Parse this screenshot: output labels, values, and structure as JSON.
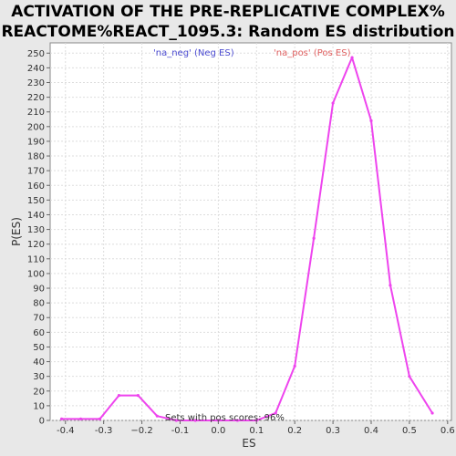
{
  "chart_data": {
    "type": "line",
    "title_line1": "ACTIVATION OF THE PRE-REPLICATIVE COMPLEX%",
    "title_line2": "REACTOME%REACT_1095.3: Random ES distribution",
    "xlabel": "ES",
    "ylabel": "P(ES)",
    "xlim": [
      -0.44,
      0.61
    ],
    "ylim": [
      0,
      257
    ],
    "x_ticks": [
      -0.4,
      -0.3,
      -0.2,
      -0.1,
      0.0,
      0.1,
      0.2,
      0.3,
      0.4,
      0.5,
      0.6
    ],
    "x_tick_labels": [
      "-0.4",
      "-0.3",
      "−0.2",
      "-0.1",
      "0.0",
      "0.1",
      "0.2",
      "0.3",
      "0.4",
      "0.5",
      "0.6"
    ],
    "y_ticks": [
      0,
      10,
      20,
      30,
      40,
      50,
      60,
      70,
      80,
      90,
      100,
      110,
      120,
      130,
      140,
      150,
      160,
      170,
      180,
      190,
      200,
      210,
      220,
      230,
      240,
      250
    ],
    "grid": true,
    "legend": {
      "neg_label": "'na_neg' (Neg ES)",
      "pos_label": "'na_pos' (Pos ES)",
      "neg_color": "#4a4ad0",
      "pos_color": "#e06060"
    },
    "annotation": "Sets with pos scores: 96%",
    "series": [
      {
        "color": "#ee44ee",
        "x": [
          -0.41,
          -0.36,
          -0.31,
          -0.26,
          -0.21,
          -0.16,
          -0.11,
          -0.06,
          0.0,
          0.05,
          0.1,
          0.15,
          0.2,
          0.25,
          0.3,
          0.35,
          0.4,
          0.45,
          0.5,
          0.56
        ],
        "y": [
          1,
          1,
          1,
          17,
          17,
          3,
          0,
          0,
          0,
          0,
          0,
          5,
          37,
          124,
          216,
          247,
          204,
          92,
          30,
          5
        ]
      }
    ]
  }
}
